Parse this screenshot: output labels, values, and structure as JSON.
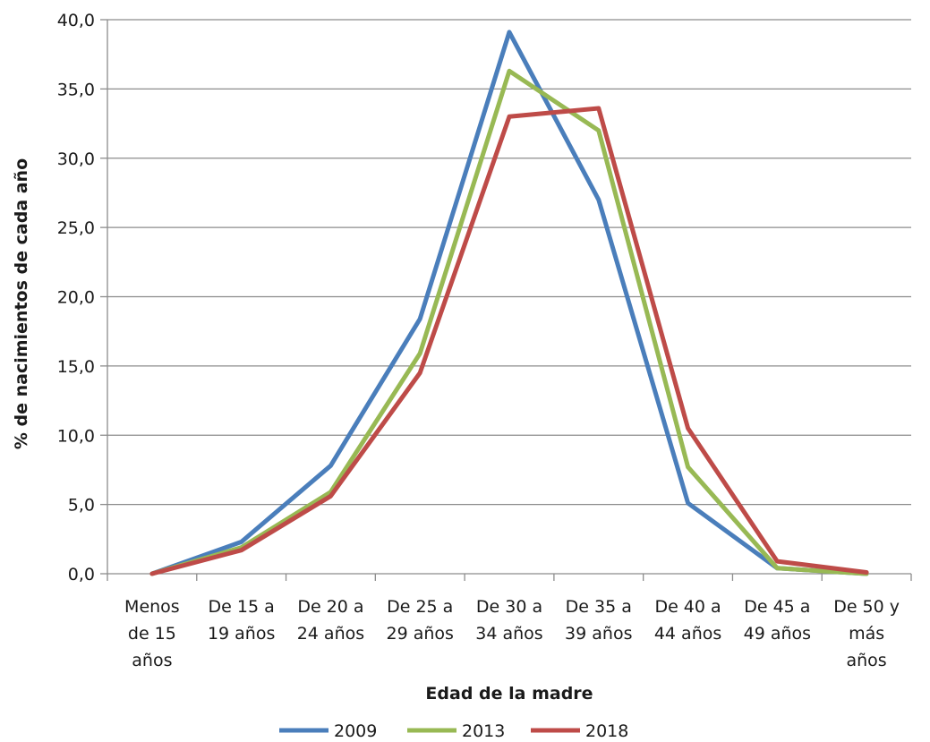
{
  "chart_data": {
    "type": "line",
    "xlabel": "Edad de la madre",
    "ylabel": "% de nacimientos de cada año",
    "ylim": [
      0,
      40
    ],
    "yticks": [
      "0,0",
      "5,0",
      "10,0",
      "15,0",
      "20,0",
      "25,0",
      "30,0",
      "35,0",
      "40,0"
    ],
    "grid": true,
    "legend_position": "bottom",
    "categories": [
      [
        "Menos",
        "de 15",
        "años"
      ],
      [
        "De 15 a",
        "19 años"
      ],
      [
        "De 20 a",
        "24 años"
      ],
      [
        "De 25 a",
        "29 años"
      ],
      [
        "De 30 a",
        "34 años"
      ],
      [
        "De 35 a",
        "39 años"
      ],
      [
        "De 40 a",
        "44 años"
      ],
      [
        "De 45 a",
        "49 años"
      ],
      [
        "De 50 y",
        "más",
        "años"
      ]
    ],
    "series": [
      {
        "name": "2009",
        "color": "#4a7ebb",
        "values": [
          0.0,
          2.3,
          7.8,
          18.4,
          39.1,
          27.0,
          5.1,
          0.4,
          0.0
        ]
      },
      {
        "name": "2013",
        "color": "#98b954",
        "values": [
          0.0,
          1.9,
          5.9,
          15.9,
          36.3,
          32.0,
          7.7,
          0.4,
          0.0
        ]
      },
      {
        "name": "2018",
        "color": "#be4b48",
        "values": [
          0.0,
          1.7,
          5.6,
          14.5,
          33.0,
          33.6,
          10.5,
          0.9,
          0.1
        ]
      }
    ]
  }
}
